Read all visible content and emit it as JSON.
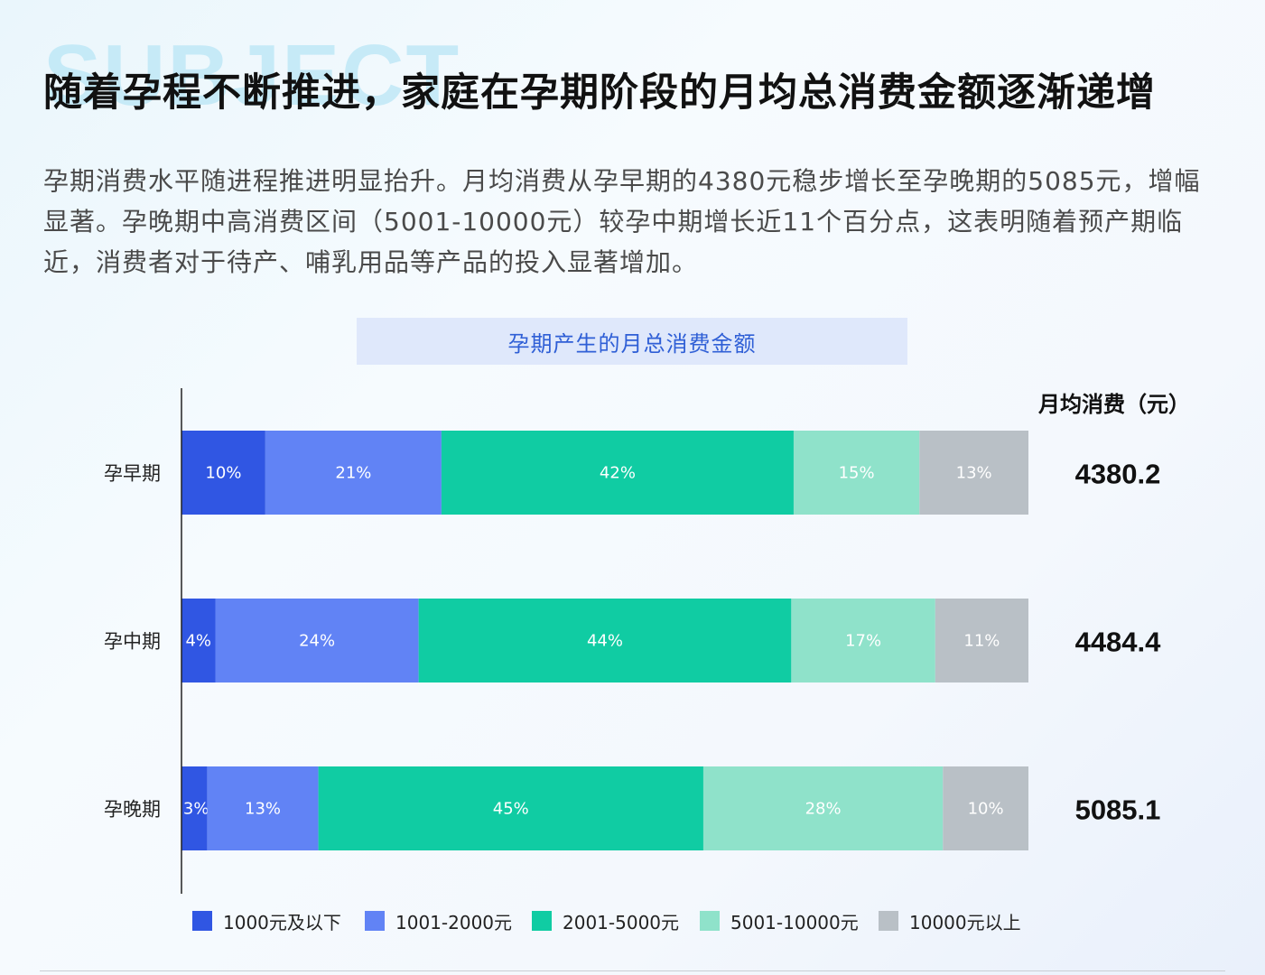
{
  "background_word": "SUBJECT",
  "title": "随着孕程不断推进，家庭在孕期阶段的月均总消费金额逐渐递增",
  "description": "孕期消费水平随进程推进明显抬升。月均消费从孕早期的4380元稳步增长至孕晚期的5085元，增幅显著。孕晚期中高消费区间（5001-10000元）较孕中期增长近11个百分点，这表明随着预产期临近，消费者对于待产、哺乳用品等产品的投入显著增加。",
  "chart_data": {
    "type": "bar",
    "orientation": "horizontal",
    "stacked": true,
    "title": "孕期产生的月总消费金额",
    "categories": [
      "孕早期",
      "孕中期",
      "孕晚期"
    ],
    "series": [
      {
        "name": "1000元及以下",
        "color": "#3056e3",
        "values": [
          10,
          4,
          3
        ]
      },
      {
        "name": "1001-2000元",
        "color": "#6183f5",
        "values": [
          21,
          24,
          13
        ]
      },
      {
        "name": "2001-5000元",
        "color": "#10cca3",
        "values": [
          42,
          44,
          45
        ]
      },
      {
        "name": "5001-10000元",
        "color": "#8fe2ca",
        "values": [
          15,
          17,
          28
        ]
      },
      {
        "name": "10000元以上",
        "color": "#b9c0c6",
        "values": [
          13,
          11,
          10
        ]
      }
    ],
    "value_suffix": "%",
    "side_header": "月均消费（元）",
    "side_values": [
      "4380.2",
      "4484.4",
      "5085.1"
    ],
    "legend_position": "bottom",
    "grid": false
  }
}
